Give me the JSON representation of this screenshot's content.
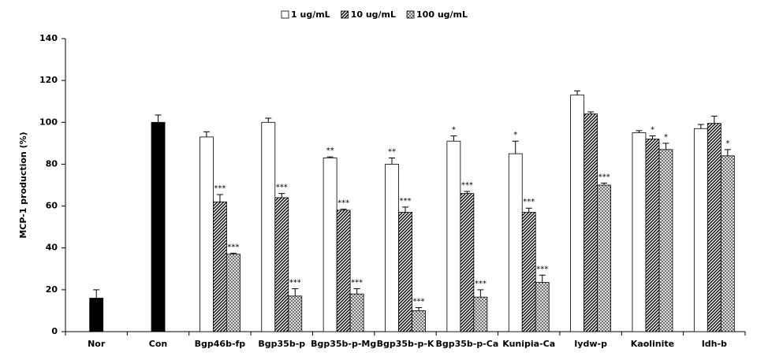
{
  "chart_data": {
    "type": "bar",
    "ylabel": "MCP-1 production  (%)",
    "categories": [
      "Nor",
      "Con",
      "Bgp46b-fp",
      "Bgp35b-p",
      "Bgp35b-p-Mg",
      "Bgp35b-p-K",
      "Bgp35b-p-Ca",
      "Kunipia-Ca",
      "Iydw-p",
      "Kaolinite",
      "Idh-b"
    ],
    "controls": {
      "color": "#000000",
      "values": [
        16,
        100,
        null,
        null,
        null,
        null,
        null,
        null,
        null,
        null,
        null
      ],
      "errors": [
        4,
        3.5,
        null,
        null,
        null,
        null,
        null,
        null,
        null,
        null,
        null
      ]
    },
    "series": [
      {
        "name": "1 ug/mL",
        "color": "#ffffff",
        "pattern": "solid",
        "values": [
          null,
          null,
          93,
          100,
          83,
          80,
          91,
          85,
          113,
          95,
          97
        ],
        "errors": [
          null,
          null,
          2.5,
          2,
          0.5,
          3,
          2.5,
          6,
          2,
          1,
          2
        ],
        "annotations": [
          null,
          null,
          null,
          null,
          "**",
          "**",
          "*",
          "*",
          null,
          null,
          null
        ]
      },
      {
        "name": "10 ug/mL",
        "color": "#222222",
        "pattern": "diagonal",
        "values": [
          null,
          null,
          62,
          64,
          58,
          57,
          66,
          57,
          104,
          92,
          99.5
        ],
        "errors": [
          null,
          null,
          3.5,
          2,
          0.5,
          2.5,
          1,
          2,
          1,
          1.5,
          3.5
        ],
        "annotations": [
          null,
          null,
          "***",
          "***",
          "***",
          "***",
          "***",
          "***",
          null,
          "*",
          null
        ]
      },
      {
        "name": "100 ug/mL",
        "color": "#444444",
        "pattern": "crosshatch",
        "values": [
          null,
          null,
          37,
          17,
          18,
          10,
          16.5,
          23.5,
          70,
          87,
          84
        ],
        "errors": [
          null,
          null,
          0.5,
          3.5,
          2.5,
          1.5,
          3.5,
          3.5,
          1,
          3,
          3
        ],
        "annotations": [
          null,
          null,
          "***",
          "***",
          "***",
          "***",
          "***",
          "***",
          "***",
          "*",
          "*"
        ]
      }
    ],
    "ylim": [
      0,
      140
    ],
    "yticks": [
      0,
      20,
      40,
      60,
      80,
      100,
      120,
      140
    ],
    "grid": false,
    "legend": "top"
  }
}
